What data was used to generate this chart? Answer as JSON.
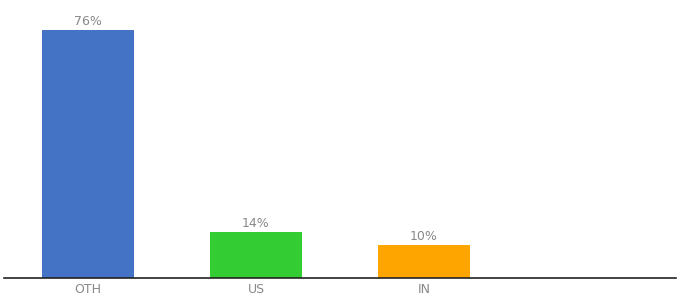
{
  "categories": [
    "OTH",
    "US",
    "IN"
  ],
  "values": [
    76,
    14,
    10
  ],
  "labels": [
    "76%",
    "14%",
    "10%"
  ],
  "bar_colors": [
    "#4472C4",
    "#33CC33",
    "#FFA500"
  ],
  "background_color": "#ffffff",
  "ylim": [
    0,
    84
  ],
  "label_fontsize": 9,
  "tick_fontsize": 9,
  "label_color": "#888888",
  "bar_positions": [
    0,
    1,
    2
  ],
  "bar_width": 0.55,
  "xlim": [
    -0.5,
    3.5
  ]
}
